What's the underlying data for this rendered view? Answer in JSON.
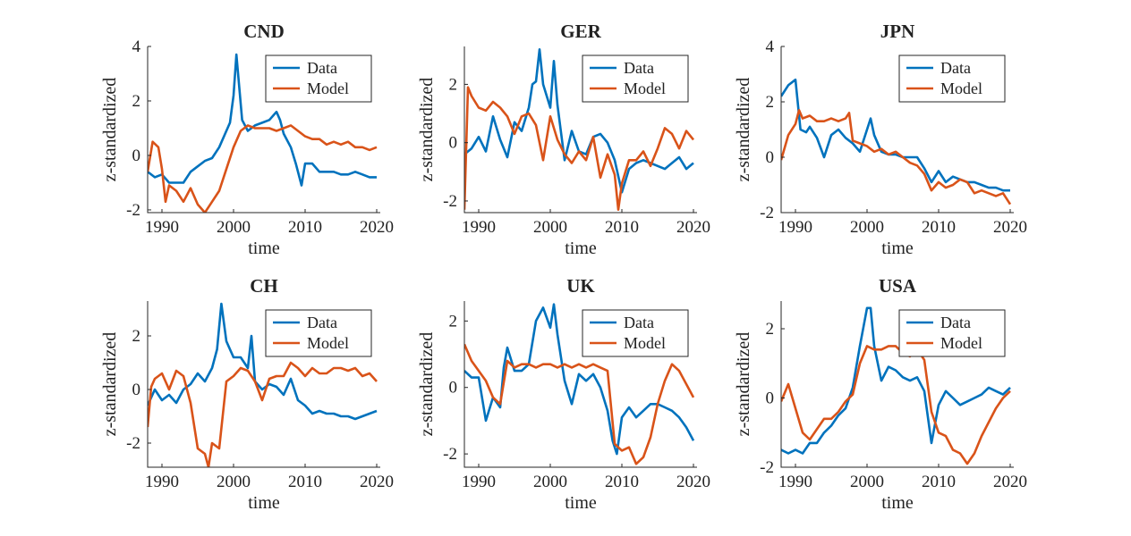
{
  "chart_data": [
    {
      "type": "line",
      "title": "CND",
      "xlabel": "time",
      "ylabel": "z-standardized",
      "xlim": [
        1988,
        2020.5
      ],
      "ylim": [
        -2.1,
        4
      ],
      "xticks": [
        1990,
        2000,
        2010,
        2020
      ],
      "yticks": [
        -2,
        0,
        2,
        4
      ],
      "legend": "top-right",
      "series": [
        {
          "name": "Data",
          "color": "#0072BD",
          "x": [
            1988,
            1989,
            1990,
            1991,
            1992,
            1993,
            1994,
            1995,
            1996,
            1997,
            1998,
            1999,
            1999.5,
            2000,
            2000.4,
            2000.8,
            2001.2,
            2002,
            2003,
            2004,
            2005,
            2006,
            2006.5,
            2007,
            2008,
            2008.7,
            2009.5,
            2010,
            2011,
            2012,
            2013,
            2014,
            2015,
            2016,
            2017,
            2018,
            2019,
            2020
          ],
          "y": [
            -0.6,
            -0.8,
            -0.7,
            -1.0,
            -1.0,
            -1.0,
            -0.6,
            -0.4,
            -0.2,
            -0.1,
            0.3,
            0.9,
            1.2,
            2.2,
            3.7,
            2.5,
            1.3,
            0.9,
            1.1,
            1.2,
            1.3,
            1.6,
            1.3,
            0.8,
            0.3,
            -0.3,
            -1.1,
            -0.3,
            -0.3,
            -0.6,
            -0.6,
            -0.6,
            -0.7,
            -0.7,
            -0.6,
            -0.7,
            -0.8,
            -0.8
          ]
        },
        {
          "name": "Model",
          "color": "#D95319",
          "x": [
            1988,
            1988.7,
            1989.5,
            1990,
            1990.5,
            1991,
            1992,
            1993,
            1994,
            1995,
            1996,
            1997,
            1998,
            1999,
            2000,
            2001,
            2002,
            2003,
            2004,
            2005,
            2006,
            2007,
            2008,
            2009,
            2010,
            2011,
            2012,
            2013,
            2014,
            2015,
            2016,
            2017,
            2018,
            2019,
            2020
          ],
          "y": [
            -0.6,
            0.5,
            0.3,
            -0.5,
            -1.7,
            -1.1,
            -1.3,
            -1.7,
            -1.2,
            -1.8,
            -2.1,
            -1.7,
            -1.3,
            -0.5,
            0.3,
            0.9,
            1.1,
            1.0,
            1.0,
            1.0,
            0.9,
            1.0,
            1.1,
            0.9,
            0.7,
            0.6,
            0.6,
            0.4,
            0.5,
            0.4,
            0.5,
            0.3,
            0.3,
            0.2,
            0.3
          ]
        }
      ]
    },
    {
      "type": "line",
      "title": "GER",
      "xlabel": "time",
      "ylabel": "",
      "xlim": [
        1988,
        2020.5
      ],
      "ylim": [
        -2.4,
        3.3
      ],
      "xticks": [
        1990,
        2000,
        2010,
        2020
      ],
      "yticks": [
        -2,
        0,
        2
      ],
      "legend": "top-right",
      "series": [
        {
          "name": "Data",
          "color": "#0072BD",
          "x": [
            1988,
            1989,
            1990,
            1991,
            1992,
            1993,
            1994,
            1995,
            1996,
            1997,
            1997.5,
            1998,
            1998.5,
            1999,
            2000,
            2000.5,
            2001,
            2002,
            2003,
            2004,
            2005,
            2006,
            2007,
            2008,
            2009,
            2010,
            2011,
            2012,
            2013,
            2014,
            2015,
            2016,
            2017,
            2018,
            2019,
            2020
          ],
          "y": [
            -0.4,
            -0.2,
            0.2,
            -0.3,
            0.9,
            0.1,
            -0.5,
            0.7,
            0.4,
            1.2,
            2.0,
            2.1,
            3.2,
            2.0,
            1.2,
            2.8,
            1.3,
            -0.6,
            0.4,
            -0.3,
            -0.4,
            0.2,
            0.3,
            0.0,
            -0.6,
            -1.7,
            -0.9,
            -0.7,
            -0.6,
            -0.7,
            -0.8,
            -0.9,
            -0.7,
            -0.5,
            -0.9,
            -0.7
          ]
        },
        {
          "name": "Model",
          "color": "#D95319",
          "x": [
            1988,
            1988.5,
            1989,
            1990,
            1991,
            1992,
            1993,
            1994,
            1995,
            1996,
            1997,
            1998,
            1999,
            2000,
            2001,
            2002,
            2003,
            2004,
            2005,
            2006,
            2007,
            2008,
            2009,
            2009.5,
            2010,
            2011,
            2012,
            2013,
            2014,
            2015,
            2016,
            2017,
            2018,
            2019,
            2020
          ],
          "y": [
            -2.3,
            1.9,
            1.6,
            1.2,
            1.1,
            1.4,
            1.2,
            0.9,
            0.3,
            0.9,
            1.0,
            0.6,
            -0.6,
            0.9,
            0.1,
            -0.4,
            -0.7,
            -0.3,
            -0.6,
            0.2,
            -1.2,
            -0.4,
            -1.1,
            -2.3,
            -1.4,
            -0.6,
            -0.6,
            -0.3,
            -0.8,
            -0.2,
            0.5,
            0.3,
            -0.2,
            0.4,
            0.1
          ]
        }
      ]
    },
    {
      "type": "line",
      "title": "JPN",
      "xlabel": "time",
      "ylabel": "z-standardized",
      "xlim": [
        1988,
        2020.5
      ],
      "ylim": [
        -2,
        4
      ],
      "xticks": [
        1990,
        2000,
        2010,
        2020
      ],
      "yticks": [
        -2,
        0,
        2,
        4
      ],
      "legend": "top-right",
      "series": [
        {
          "name": "Data",
          "color": "#0072BD",
          "x": [
            1988,
            1989,
            1990,
            1990.7,
            1991.5,
            1992,
            1993,
            1994,
            1995,
            1996,
            1997,
            1998,
            1999,
            2000,
            2000.5,
            2001,
            2002,
            2003,
            2004,
            2005,
            2006,
            2007,
            2008,
            2009,
            2010,
            2011,
            2012,
            2013,
            2014,
            2015,
            2016,
            2017,
            2018,
            2019,
            2020
          ],
          "y": [
            2.2,
            2.6,
            2.8,
            1.0,
            0.9,
            1.1,
            0.7,
            0.0,
            0.8,
            1.0,
            0.7,
            0.5,
            0.2,
            1.0,
            1.4,
            0.8,
            0.2,
            0.1,
            0.1,
            0.0,
            0.0,
            0.0,
            -0.4,
            -0.9,
            -0.5,
            -0.9,
            -0.7,
            -0.8,
            -0.9,
            -0.9,
            -1.0,
            -1.1,
            -1.1,
            -1.2,
            -1.2
          ]
        },
        {
          "name": "Model",
          "color": "#D95319",
          "x": [
            1988,
            1989,
            1990,
            1990.5,
            1991,
            1992,
            1993,
            1994,
            1995,
            1996,
            1997,
            1997.5,
            1998,
            1999,
            2000,
            2001,
            2002,
            2003,
            2004,
            2005,
            2006,
            2007,
            2008,
            2009,
            2010,
            2011,
            2012,
            2013,
            2014,
            2015,
            2016,
            2017,
            2018,
            2019,
            2020
          ],
          "y": [
            -0.1,
            0.8,
            1.2,
            1.7,
            1.4,
            1.5,
            1.3,
            1.3,
            1.4,
            1.3,
            1.4,
            1.6,
            0.6,
            0.5,
            0.4,
            0.2,
            0.3,
            0.1,
            0.2,
            0.0,
            -0.2,
            -0.3,
            -0.6,
            -1.2,
            -0.9,
            -1.1,
            -1.0,
            -0.8,
            -0.9,
            -1.3,
            -1.2,
            -1.3,
            -1.4,
            -1.3,
            -1.7
          ]
        }
      ]
    },
    {
      "type": "line",
      "title": "CH",
      "xlabel": "time",
      "ylabel": "z-standardized",
      "xlim": [
        1988,
        2020.5
      ],
      "ylim": [
        -2.9,
        3.3
      ],
      "xticks": [
        1990,
        2000,
        2010,
        2020
      ],
      "yticks": [
        -2,
        0,
        2
      ],
      "legend": "top-right",
      "series": [
        {
          "name": "Data",
          "color": "#0072BD",
          "x": [
            1988,
            1989,
            1990,
            1991,
            1992,
            1993,
            1994,
            1995,
            1996,
            1997,
            1997.7,
            1998.3,
            1999,
            2000,
            2001,
            2002,
            2002.5,
            2003,
            2004,
            2005,
            2006,
            2007,
            2008,
            2009,
            2010,
            2011,
            2012,
            2013,
            2014,
            2015,
            2016,
            2017,
            2018,
            2019,
            2020
          ],
          "y": [
            -0.6,
            0.0,
            -0.4,
            -0.2,
            -0.5,
            0.0,
            0.2,
            0.6,
            0.3,
            0.8,
            1.5,
            3.2,
            1.8,
            1.2,
            1.2,
            0.8,
            2.0,
            0.3,
            0.0,
            0.2,
            0.1,
            -0.2,
            0.4,
            -0.4,
            -0.6,
            -0.9,
            -0.8,
            -0.9,
            -0.9,
            -1.0,
            -1.0,
            -1.1,
            -1.0,
            -0.9,
            -0.8
          ]
        },
        {
          "name": "Model",
          "color": "#D95319",
          "x": [
            1988,
            1988.5,
            1989,
            1990,
            1991,
            1992,
            1993,
            1994,
            1995,
            1996,
            1996.5,
            1997,
            1998,
            1999,
            2000,
            2001,
            2002,
            2003,
            2004,
            2005,
            2006,
            2007,
            2008,
            2009,
            2010,
            2011,
            2012,
            2013,
            2014,
            2015,
            2016,
            2017,
            2018,
            2019,
            2020
          ],
          "y": [
            -1.4,
            0.1,
            0.4,
            0.6,
            0.0,
            0.7,
            0.5,
            -0.5,
            -2.2,
            -2.4,
            -2.9,
            -2.0,
            -2.2,
            0.3,
            0.5,
            0.8,
            0.7,
            0.3,
            -0.4,
            0.4,
            0.5,
            0.5,
            1.0,
            0.8,
            0.5,
            0.8,
            0.6,
            0.6,
            0.8,
            0.8,
            0.7,
            0.8,
            0.5,
            0.6,
            0.3
          ]
        }
      ]
    },
    {
      "type": "line",
      "title": "UK",
      "xlabel": "time",
      "ylabel": "",
      "xlim": [
        1988,
        2020.5
      ],
      "ylim": [
        -2.4,
        2.6
      ],
      "xticks": [
        1990,
        2000,
        2010,
        2020
      ],
      "yticks": [
        -2,
        0,
        2
      ],
      "legend": "top-right",
      "series": [
        {
          "name": "Data",
          "color": "#0072BD",
          "x": [
            1988,
            1989,
            1990,
            1991,
            1992,
            1993,
            1993.5,
            1994,
            1995,
            1996,
            1997,
            1998,
            1999,
            2000,
            2000.5,
            2001,
            2002,
            2003,
            2004,
            2005,
            2006,
            2007,
            2008,
            2008.7,
            2009.3,
            2010,
            2011,
            2012,
            2013,
            2014,
            2015,
            2016,
            2017,
            2018,
            2019,
            2020
          ],
          "y": [
            0.5,
            0.3,
            0.3,
            -1.0,
            -0.3,
            -0.6,
            0.6,
            1.2,
            0.5,
            0.5,
            0.7,
            2.0,
            2.4,
            1.8,
            2.5,
            1.6,
            0.2,
            -0.5,
            0.4,
            0.2,
            0.4,
            0.0,
            -0.7,
            -1.6,
            -2.0,
            -0.9,
            -0.6,
            -0.9,
            -0.7,
            -0.5,
            -0.5,
            -0.6,
            -0.7,
            -0.9,
            -1.2,
            -1.6
          ]
        },
        {
          "name": "Model",
          "color": "#D95319",
          "x": [
            1988,
            1989,
            1990,
            1991,
            1992,
            1993,
            1994,
            1995,
            1996,
            1997,
            1998,
            1999,
            2000,
            2001,
            2002,
            2003,
            2004,
            2005,
            2006,
            2007,
            2008,
            2009,
            2010,
            2011,
            2012,
            2013,
            2014,
            2015,
            2016,
            2017,
            2018,
            2019,
            2020
          ],
          "y": [
            1.3,
            0.8,
            0.5,
            0.2,
            -0.3,
            -0.5,
            0.8,
            0.6,
            0.7,
            0.7,
            0.6,
            0.7,
            0.7,
            0.6,
            0.7,
            0.6,
            0.7,
            0.6,
            0.7,
            0.6,
            0.5,
            -1.7,
            -1.9,
            -1.8,
            -2.3,
            -2.1,
            -1.5,
            -0.5,
            0.2,
            0.7,
            0.5,
            0.1,
            -0.3
          ]
        }
      ]
    },
    {
      "type": "line",
      "title": "USA",
      "xlabel": "time",
      "ylabel": "z-standardized",
      "xlim": [
        1988,
        2020.5
      ],
      "ylim": [
        -2,
        2.8
      ],
      "xticks": [
        1990,
        2000,
        2010,
        2020
      ],
      "yticks": [
        -2,
        0,
        2
      ],
      "legend": "top-right",
      "series": [
        {
          "name": "Data",
          "color": "#0072BD",
          "x": [
            1988,
            1989,
            1990,
            1991,
            1992,
            1993,
            1994,
            1995,
            1996,
            1997,
            1998,
            1999,
            2000,
            2000.5,
            2001,
            2002,
            2003,
            2004,
            2005,
            2006,
            2007,
            2008,
            2009,
            2010,
            2011,
            2012,
            2013,
            2014,
            2015,
            2016,
            2017,
            2018,
            2019,
            2020
          ],
          "y": [
            -1.5,
            -1.6,
            -1.5,
            -1.6,
            -1.3,
            -1.3,
            -1.0,
            -0.8,
            -0.5,
            -0.3,
            0.3,
            1.5,
            2.6,
            2.6,
            1.5,
            0.5,
            0.9,
            0.8,
            0.6,
            0.5,
            0.6,
            0.2,
            -1.3,
            -0.2,
            0.2,
            0.0,
            -0.2,
            -0.1,
            0.0,
            0.1,
            0.3,
            0.2,
            0.1,
            0.3
          ]
        },
        {
          "name": "Model",
          "color": "#D95319",
          "x": [
            1988,
            1989,
            1990,
            1991,
            1992,
            1993,
            1994,
            1995,
            1996,
            1997,
            1998,
            1999,
            2000,
            2001,
            2002,
            2003,
            2004,
            2005,
            2006,
            2007,
            2008,
            2009,
            2010,
            2011,
            2012,
            2013,
            2014,
            2015,
            2016,
            2017,
            2018,
            2019,
            2020
          ],
          "y": [
            -0.1,
            0.4,
            -0.3,
            -1.0,
            -1.2,
            -0.9,
            -0.6,
            -0.6,
            -0.4,
            -0.1,
            0.1,
            1.0,
            1.5,
            1.4,
            1.4,
            1.5,
            1.5,
            1.3,
            1.2,
            1.4,
            1.1,
            -0.4,
            -1.0,
            -1.1,
            -1.5,
            -1.6,
            -1.9,
            -1.6,
            -1.1,
            -0.7,
            -0.3,
            0.0,
            0.2
          ]
        }
      ]
    }
  ]
}
